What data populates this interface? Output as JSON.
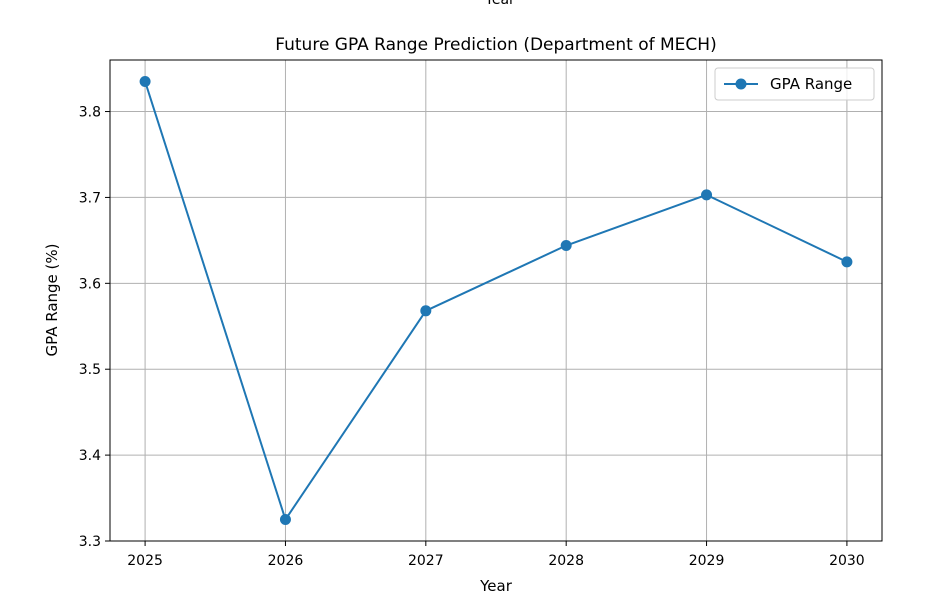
{
  "figure": {
    "top_clip_text": "Year"
  },
  "colors": {
    "series": "#1f77b4",
    "grid": "#b0b0b0",
    "axes": "#000000",
    "legend_border": "#cccccc"
  },
  "chart_data": {
    "type": "line",
    "title": "Future GPA Range Prediction (Department of MECH)",
    "xlabel": "Year",
    "ylabel": "GPA Range (%)",
    "x": [
      2025,
      2026,
      2027,
      2028,
      2029,
      2030
    ],
    "series": [
      {
        "name": "GPA Range",
        "values": [
          3.835,
          3.325,
          3.568,
          3.644,
          3.703,
          3.625
        ],
        "marker": "circle"
      }
    ],
    "xticks": [
      "2025",
      "2026",
      "2027",
      "2028",
      "2029",
      "2030"
    ],
    "yticks": [
      "3.3",
      "3.4",
      "3.5",
      "3.6",
      "3.7",
      "3.8"
    ],
    "ytick_values": [
      3.3,
      3.4,
      3.5,
      3.6,
      3.7,
      3.8
    ],
    "xlim": [
      2024.75,
      2030.25
    ],
    "ylim": [
      3.3,
      3.86
    ],
    "grid": true,
    "legend_position": "top-right"
  }
}
